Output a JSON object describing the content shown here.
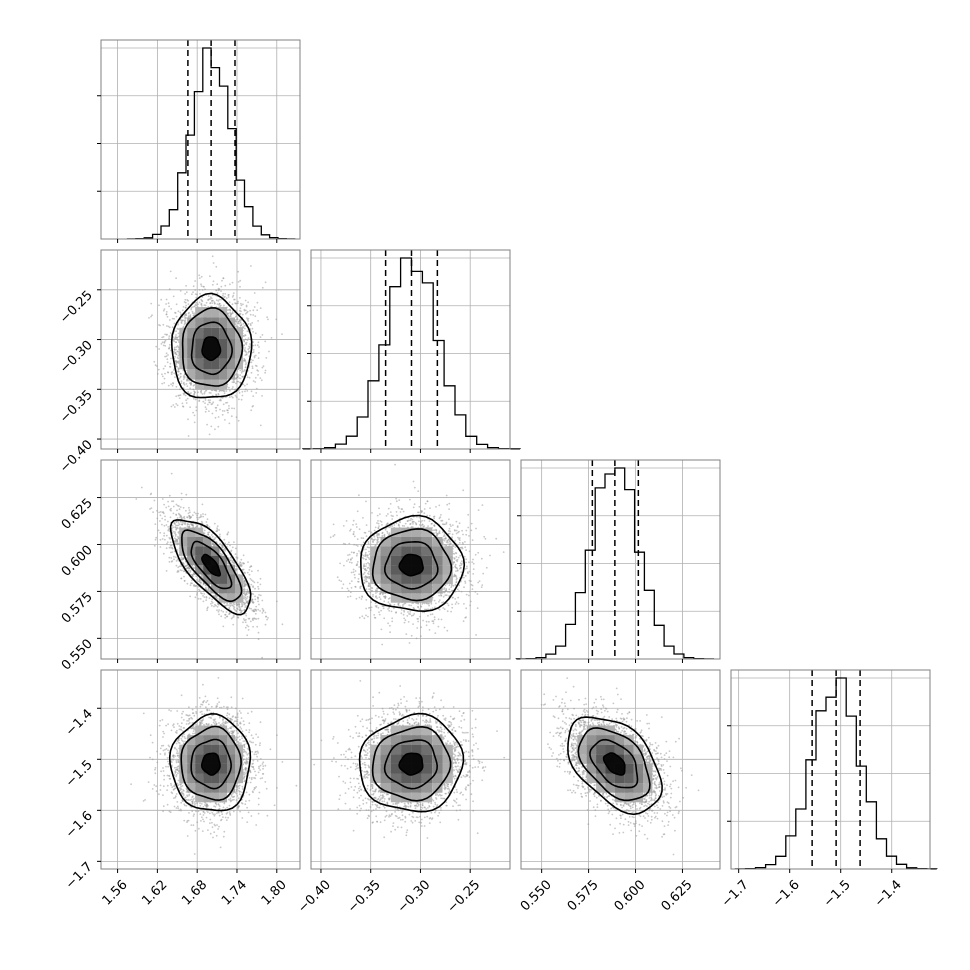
{
  "chart_data": {
    "type": "corner",
    "parameters": [
      {
        "index": 0,
        "range": [
          1.535,
          1.835
        ],
        "ticks": [
          1.56,
          1.62,
          1.68,
          1.74,
          1.8
        ],
        "tick_labels": [
          "1.56",
          "1.62",
          "1.68",
          "1.74",
          "1.80"
        ],
        "mean": 1.701,
        "sd": 0.03,
        "quantiles": [
          1.666,
          1.701,
          1.737
        ]
      },
      {
        "index": 1,
        "range": [
          -0.41,
          -0.21
        ],
        "ticks": [
          -0.4,
          -0.35,
          -0.3,
          -0.25
        ],
        "tick_labels": [
          "−0.40",
          "−0.35",
          "−0.30",
          "−0.25"
        ],
        "mean": -0.309,
        "sd": 0.026,
        "quantiles": [
          -0.335,
          -0.309,
          -0.283
        ]
      },
      {
        "index": 2,
        "range": [
          0.539,
          0.645
        ],
        "ticks": [
          0.55,
          0.575,
          0.6,
          0.625
        ],
        "tick_labels": [
          "0.550",
          "0.575",
          "0.600",
          "0.625"
        ],
        "mean": 0.589,
        "sd": 0.0125,
        "quantiles": [
          0.577,
          0.589,
          0.6015
        ]
      },
      {
        "index": 3,
        "range": [
          -1.715,
          -1.325
        ],
        "ticks": [
          -1.7,
          -1.6,
          -1.5,
          -1.4
        ],
        "tick_labels": [
          "−1.7",
          "−1.6",
          "−1.5",
          "−1.4"
        ],
        "mean": -1.509,
        "sd": 0.047,
        "quantiles": [
          -1.556,
          -1.509,
          -1.462
        ]
      }
    ],
    "correlations": {
      "1-0": 0.0,
      "2-0": -0.72,
      "2-1": 0.0,
      "3-0": 0.0,
      "3-1": 0.05,
      "3-2": -0.45
    },
    "histogram_bins": 20,
    "quantile_lines": "dashed",
    "contour_levels": 4,
    "grid": true,
    "colors": {
      "line": "#000000",
      "points": "#9a9a9a",
      "grid": "#b0b0b0",
      "frame": "#808080"
    }
  }
}
